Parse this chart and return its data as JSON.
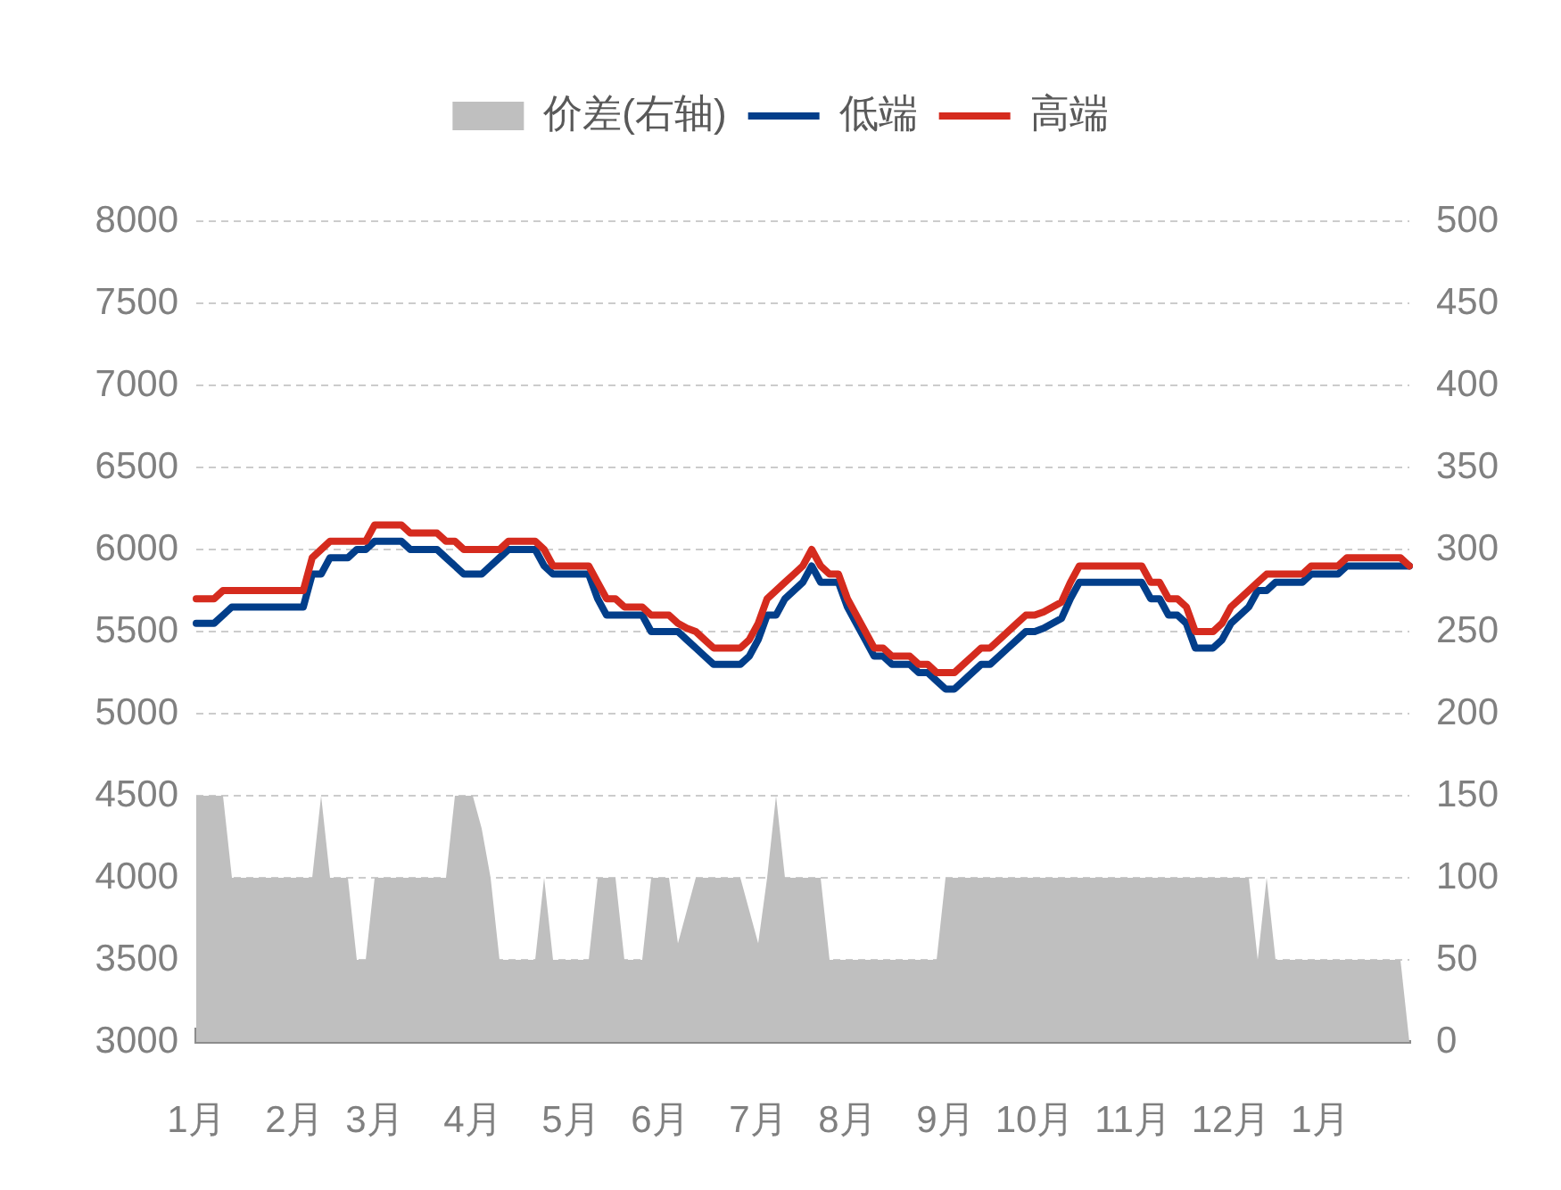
{
  "chart_data": {
    "type": "line",
    "categories": [
      "1月",
      null,
      null,
      null,
      null,
      null,
      null,
      null,
      null,
      null,
      null,
      "2月",
      null,
      null,
      null,
      null,
      null,
      null,
      null,
      null,
      "3月",
      null,
      null,
      null,
      null,
      null,
      null,
      null,
      null,
      null,
      null,
      "4月",
      null,
      null,
      null,
      null,
      null,
      null,
      null,
      null,
      null,
      null,
      "5月",
      null,
      null,
      null,
      null,
      null,
      null,
      null,
      null,
      null,
      "6月",
      null,
      null,
      null,
      null,
      null,
      null,
      null,
      null,
      null,
      null,
      "7月",
      null,
      null,
      null,
      null,
      null,
      null,
      null,
      null,
      null,
      "8月",
      null,
      null,
      null,
      null,
      null,
      null,
      null,
      null,
      null,
      null,
      "9月",
      null,
      null,
      null,
      null,
      null,
      null,
      null,
      null,
      null,
      "10月",
      null,
      null,
      null,
      null,
      null,
      null,
      null,
      null,
      null,
      null,
      "11月",
      null,
      null,
      null,
      null,
      null,
      null,
      null,
      null,
      null,
      null,
      "12月",
      null,
      null,
      null,
      null,
      null,
      null,
      null,
      null,
      null,
      "1月",
      null,
      null,
      null,
      null,
      null,
      null,
      null,
      null,
      null,
      null
    ],
    "series": [
      {
        "name": "价差(右轴)",
        "type": "area",
        "axis": "y2",
        "color": "#bfbfbf",
        "values": [
          150,
          150,
          150,
          150,
          100,
          100,
          100,
          100,
          100,
          100,
          100,
          100,
          100,
          100,
          150,
          100,
          100,
          100,
          50,
          50,
          100,
          100,
          100,
          100,
          100,
          100,
          100,
          100,
          100,
          150,
          150,
          150,
          130,
          100,
          50,
          50,
          50,
          50,
          50,
          100,
          50,
          50,
          50,
          50,
          50,
          100,
          100,
          100,
          50,
          50,
          50,
          100,
          100,
          100,
          60,
          80,
          100,
          100,
          100,
          100,
          100,
          100,
          80,
          60,
          100,
          150,
          100,
          100,
          100,
          100,
          100,
          50,
          50,
          50,
          50,
          50,
          50,
          50,
          50,
          50,
          50,
          50,
          50,
          50,
          100,
          100,
          100,
          100,
          100,
          100,
          100,
          100,
          100,
          100,
          100,
          100,
          100,
          100,
          100,
          100,
          100,
          100,
          100,
          100,
          100,
          100,
          100,
          100,
          100,
          100,
          100,
          100,
          100,
          100,
          100,
          100,
          100,
          100,
          100,
          50,
          100,
          50,
          50,
          50,
          50,
          50,
          50,
          50,
          50,
          50,
          50,
          50,
          50,
          50,
          50,
          50,
          0
        ]
      },
      {
        "name": "低端",
        "type": "line",
        "color": "#023e8a",
        "values": [
          5550,
          5550,
          5550,
          5600,
          5650,
          5650,
          5650,
          5650,
          5650,
          5650,
          5650,
          5650,
          5650,
          5850,
          5850,
          5950,
          5950,
          5950,
          6000,
          6000,
          6050,
          6050,
          6050,
          6050,
          6000,
          6000,
          6000,
          6000,
          5950,
          5900,
          5850,
          5850,
          5850,
          5900,
          5950,
          6000,
          6000,
          6000,
          6000,
          5900,
          5850,
          5850,
          5850,
          5850,
          5850,
          5700,
          5600,
          5600,
          5600,
          5600,
          5600,
          5500,
          5500,
          5500,
          5500,
          5450,
          5400,
          5350,
          5300,
          5300,
          5300,
          5300,
          5350,
          5450,
          5600,
          5600,
          5700,
          5750,
          5800,
          5900,
          5800,
          5800,
          5800,
          5650,
          5550,
          5450,
          5350,
          5350,
          5300,
          5300,
          5300,
          5250,
          5250,
          5200,
          5150,
          5150,
          5200,
          5250,
          5300,
          5300,
          5350,
          5400,
          5450,
          5500,
          5500,
          5520,
          5550,
          5580,
          5700,
          5800,
          5800,
          5800,
          5800,
          5800,
          5800,
          5800,
          5800,
          5700,
          5700,
          5600,
          5600,
          5550,
          5400,
          5400,
          5400,
          5450,
          5550,
          5600,
          5650,
          5750,
          5750,
          5800,
          5800,
          5800,
          5800,
          5850,
          5850,
          5850,
          5850,
          5900,
          5900,
          5900,
          5900,
          5900,
          5900,
          5900,
          5900
        ]
      },
      {
        "name": "高端",
        "type": "line",
        "color": "#d52b1e",
        "values": [
          5700,
          5700,
          5700,
          5750,
          5750,
          5750,
          5750,
          5750,
          5750,
          5750,
          5750,
          5750,
          5750,
          5950,
          6000,
          6050,
          6050,
          6050,
          6050,
          6050,
          6150,
          6150,
          6150,
          6150,
          6100,
          6100,
          6100,
          6100,
          6050,
          6050,
          6000,
          6000,
          6000,
          6000,
          6000,
          6050,
          6050,
          6050,
          6050,
          6000,
          5900,
          5900,
          5900,
          5900,
          5900,
          5800,
          5700,
          5700,
          5650,
          5650,
          5650,
          5600,
          5600,
          5600,
          5550,
          5520,
          5500,
          5450,
          5400,
          5400,
          5400,
          5400,
          5450,
          5550,
          5700,
          5750,
          5800,
          5850,
          5900,
          6000,
          5900,
          5850,
          5850,
          5700,
          5600,
          5500,
          5400,
          5400,
          5350,
          5350,
          5350,
          5300,
          5300,
          5250,
          5250,
          5250,
          5300,
          5350,
          5400,
          5400,
          5450,
          5500,
          5550,
          5600,
          5600,
          5620,
          5650,
          5680,
          5800,
          5900,
          5900,
          5900,
          5900,
          5900,
          5900,
          5900,
          5900,
          5800,
          5800,
          5700,
          5700,
          5650,
          5500,
          5500,
          5500,
          5550,
          5650,
          5700,
          5750,
          5800,
          5850,
          5850,
          5850,
          5850,
          5850,
          5900,
          5900,
          5900,
          5900,
          5950,
          5950,
          5950,
          5950,
          5950,
          5950,
          5950,
          5900
        ]
      }
    ],
    "ylim": [
      3000,
      8000
    ],
    "yticks": [
      3000,
      3500,
      4000,
      4500,
      5000,
      5500,
      6000,
      6500,
      7000,
      7500,
      8000
    ],
    "y2lim": [
      0,
      500
    ],
    "y2ticks": [
      0,
      50,
      100,
      150,
      200,
      250,
      300,
      350,
      400,
      450,
      500
    ],
    "grid": "y",
    "legend": "top",
    "marker": "none"
  }
}
